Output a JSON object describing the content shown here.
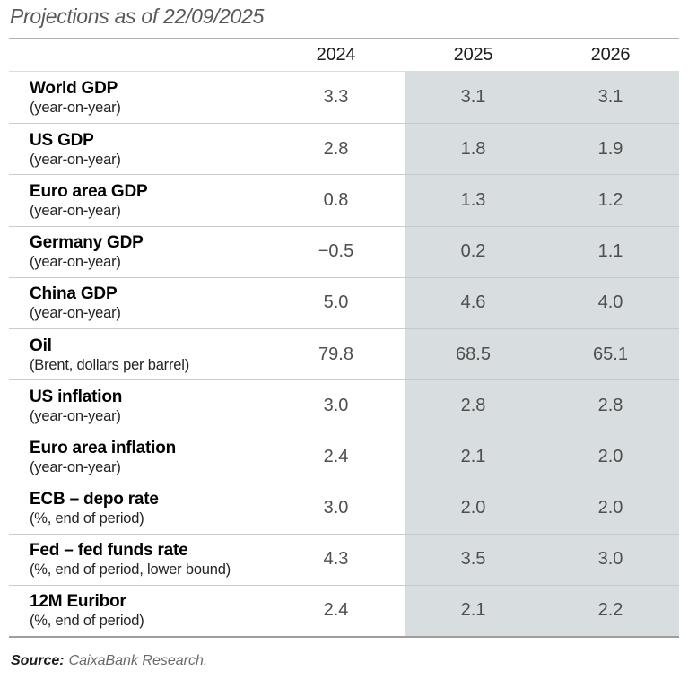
{
  "title": "Projections as of 22/09/2025",
  "table": {
    "columns": [
      "2024",
      "2025",
      "2026"
    ],
    "rows": [
      {
        "label": "World GDP",
        "sublabel": "(year-on-year)",
        "values": [
          "3.3",
          "3.1",
          "3.1"
        ]
      },
      {
        "label": "US GDP",
        "sublabel": "(year-on-year)",
        "values": [
          "2.8",
          "1.8",
          "1.9"
        ]
      },
      {
        "label": "Euro area GDP",
        "sublabel": "(year-on-year)",
        "values": [
          "0.8",
          "1.3",
          "1.2"
        ]
      },
      {
        "label": "Germany GDP",
        "sublabel": "(year-on-year)",
        "values": [
          "−0.5",
          "0.2",
          "1.1"
        ]
      },
      {
        "label": "China GDP",
        "sublabel": "(year-on-year)",
        "values": [
          "5.0",
          "4.6",
          "4.0"
        ]
      },
      {
        "label": "Oil",
        "sublabel": "(Brent, dollars per barrel)",
        "values": [
          "79.8",
          "68.5",
          "65.1"
        ]
      },
      {
        "label": "US inflation",
        "sublabel": "(year-on-year)",
        "values": [
          "3.0",
          "2.8",
          "2.8"
        ]
      },
      {
        "label": "Euro area inflation",
        "sublabel": "(year-on-year)",
        "values": [
          "2.4",
          "2.1",
          "2.0"
        ]
      },
      {
        "label": "ECB – depo rate",
        "sublabel": "(%, end of period)",
        "values": [
          "3.0",
          "2.0",
          "2.0"
        ]
      },
      {
        "label": "Fed – fed funds rate",
        "sublabel": "(%, end of period, lower bound)",
        "values": [
          "4.3",
          "3.5",
          "3.0"
        ]
      },
      {
        "label": "12M Euribor",
        "sublabel": "(%, end of period)",
        "values": [
          "2.4",
          "2.1",
          "2.2"
        ]
      }
    ]
  },
  "source": {
    "label": "Source:",
    "text": "CaixaBank Research."
  },
  "colors": {
    "highlight_column_background": "#d8dde0",
    "top_rule": "#b2b2b2",
    "bottom_rule": "#9e9e9e",
    "row_separator": "#cccccc",
    "value_text": "#4e4e4e",
    "title_text": "#59595b"
  }
}
